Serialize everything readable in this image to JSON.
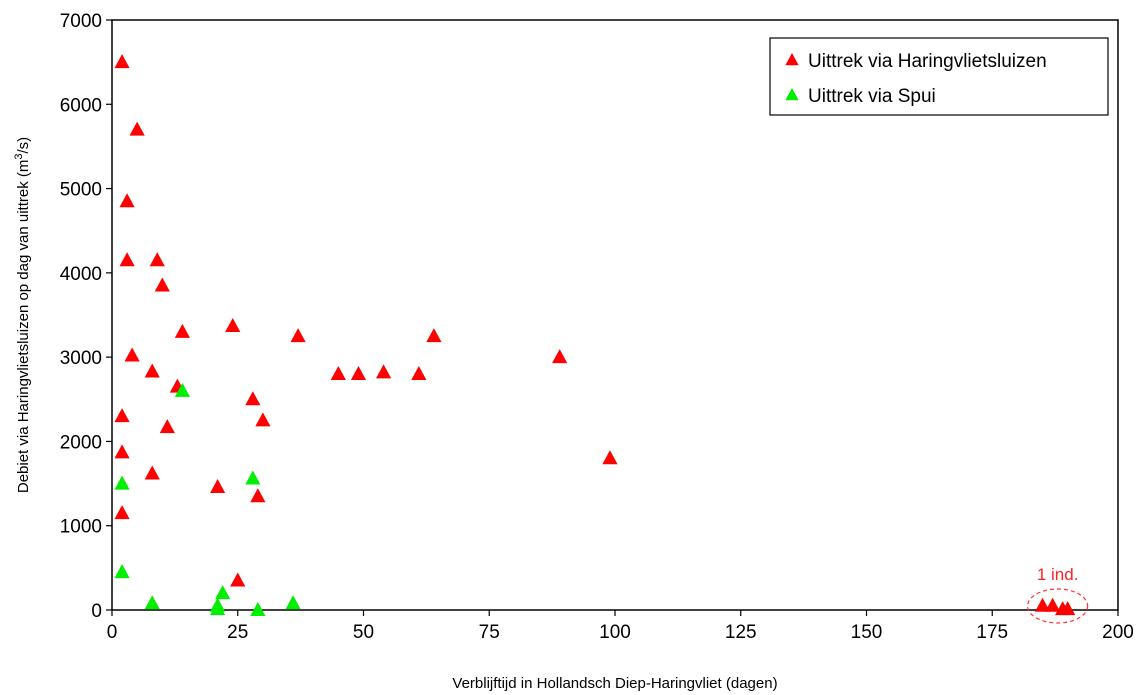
{
  "chart_data": {
    "type": "scatter",
    "xlabel": "Verblijftijd in Hollandsch Diep-Haringvliet (dagen)",
    "ylabel_main": "Debiet via Haringvlietsluizen op dag van uittrek (m",
    "ylabel_sup": "3",
    "ylabel_end": "/s)",
    "xlim": [
      0,
      200
    ],
    "ylim": [
      0,
      7000
    ],
    "xticks": [
      0,
      25,
      50,
      75,
      100,
      125,
      150,
      175,
      200
    ],
    "yticks": [
      0,
      1000,
      2000,
      3000,
      4000,
      5000,
      6000,
      7000
    ],
    "grid": false,
    "legend_position": "top-right",
    "series": [
      {
        "name": "Uittrek via Haringvlietsluizen",
        "color": "#ff0000",
        "marker": "triangle",
        "points": [
          [
            2,
            6500
          ],
          [
            5,
            5700
          ],
          [
            3,
            4850
          ],
          [
            3,
            4150
          ],
          [
            9,
            4150
          ],
          [
            10,
            3850
          ],
          [
            24,
            3370
          ],
          [
            14,
            3300
          ],
          [
            37,
            3250
          ],
          [
            64,
            3250
          ],
          [
            4,
            3020
          ],
          [
            89,
            3000
          ],
          [
            8,
            2830
          ],
          [
            45,
            2800
          ],
          [
            49,
            2800
          ],
          [
            54,
            2820
          ],
          [
            61,
            2800
          ],
          [
            13,
            2650
          ],
          [
            28,
            2500
          ],
          [
            2,
            2300
          ],
          [
            30,
            2250
          ],
          [
            11,
            2170
          ],
          [
            2,
            1870
          ],
          [
            99,
            1800
          ],
          [
            8,
            1620
          ],
          [
            21,
            1460
          ],
          [
            29,
            1350
          ],
          [
            2,
            1150
          ],
          [
            25,
            350
          ],
          [
            185,
            50
          ],
          [
            187,
            50
          ],
          [
            189,
            10
          ],
          [
            190,
            10
          ]
        ]
      },
      {
        "name": "Uittrek via Spui",
        "color": "#00ee00",
        "marker": "triangle",
        "points": [
          [
            14,
            2600
          ],
          [
            28,
            1560
          ],
          [
            2,
            1500
          ],
          [
            2,
            450
          ],
          [
            22,
            200
          ],
          [
            8,
            80
          ],
          [
            21,
            50
          ],
          [
            21,
            10
          ],
          [
            29,
            0
          ],
          [
            36,
            80
          ]
        ]
      }
    ],
    "annotations": [
      {
        "text": "1 ind.",
        "x": 188,
        "y": 400
      }
    ]
  }
}
